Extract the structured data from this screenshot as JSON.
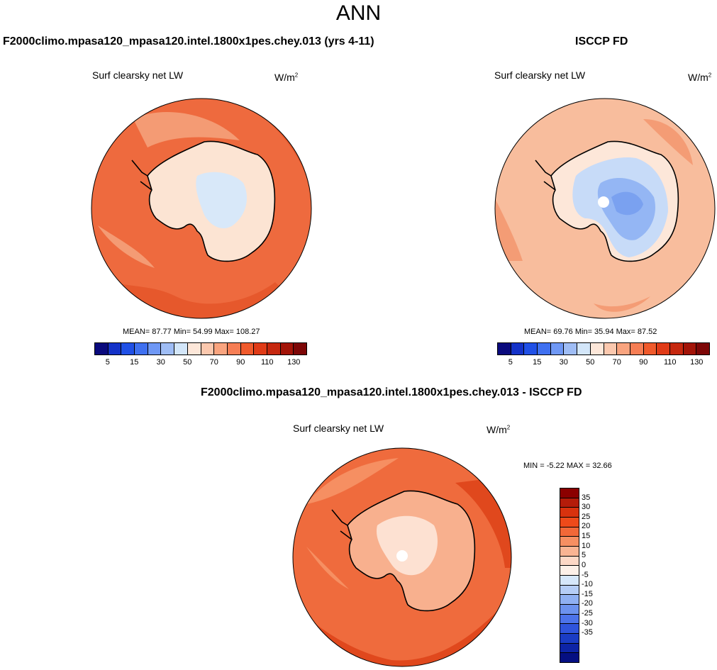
{
  "figure_title": "ANN",
  "panels": {
    "model": {
      "title": "F2000climo.mpasa120_mpasa120.intel.1800x1pes.chey.013 (yrs 4-11)",
      "subtitle": "Surf clearsky net LW",
      "units_base": "W/m",
      "units_exp": "2",
      "stats": "MEAN=  87.77  Min=  54.99  Max= 108.27"
    },
    "obs": {
      "title": "ISCCP FD",
      "subtitle": "Surf clearsky net LW",
      "units_base": "W/m",
      "units_exp": "2",
      "stats": "MEAN=  69.76  Min=  35.94  Max=  87.52"
    },
    "diff": {
      "title": "F2000climo.mpasa120_mpasa120.intel.1800x1pes.chey.013 - ISCCP FD",
      "subtitle": "Surf clearsky net LW",
      "units_base": "W/m",
      "units_exp": "2",
      "stats": "MIN =  -5.22 MAX =  32.66"
    }
  },
  "colorbar_abs": {
    "colors": [
      "#0a0a7d",
      "#1432c8",
      "#2050e6",
      "#3f70f0",
      "#6f98f5",
      "#9fbdf5",
      "#d3e6f9",
      "#fde7d9",
      "#fbc8ae",
      "#f9a47f",
      "#f67e55",
      "#f05a2c",
      "#e03b17",
      "#c6280f",
      "#a31408",
      "#7d0707"
    ],
    "labels": [
      "5",
      "15",
      "30",
      "50",
      "70",
      "90",
      "110",
      "130"
    ]
  },
  "colorbar_diff": {
    "colors": [
      "#8b0000",
      "#b41c0a",
      "#d8320e",
      "#ee4a1a",
      "#f26838",
      "#f68f62",
      "#f9b493",
      "#fdd8c6",
      "#fdf0e8",
      "#d6e7fa",
      "#b5cdf6",
      "#8fb0f2",
      "#6c92ee",
      "#4c73ea",
      "#2f54dc",
      "#1a3cc4",
      "#0d24a6",
      "#050f82"
    ],
    "labels": [
      "35",
      "30",
      "25",
      "20",
      "15",
      "10",
      "5",
      "0",
      "-5",
      "-10",
      "-15",
      "-20",
      "-25",
      "-30",
      "-35"
    ]
  },
  "map_colors": {
    "ocean_model": "#ee6a3e",
    "ocean_model_dark": "#e4562a",
    "ocean_model_light": "#f49b74",
    "land_model": "#fce4d3",
    "land_model_inner": "#d8e8f9",
    "ocean_obs": "#f8bd9d",
    "ocean_obs_dark": "#f49c75",
    "land_obs": "#c7dbf8",
    "land_obs_inner": "#94b6f4",
    "land_obs_deep": "#7aa1f0",
    "ocean_diff": "#ef6b3d",
    "ocean_diff_dark": "#e0481d",
    "land_diff": "#f8b08e",
    "land_diff_light": "#fde1d2"
  }
}
